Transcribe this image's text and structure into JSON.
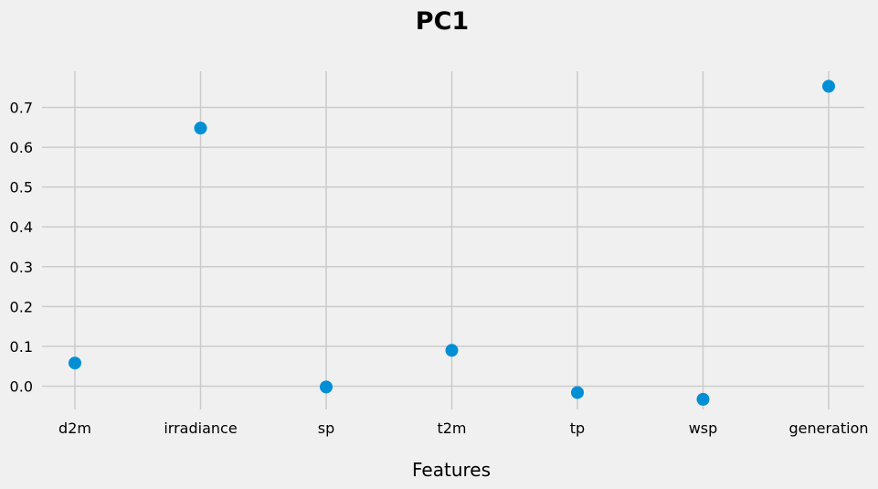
{
  "chart_data": {
    "type": "scatter",
    "title": "PC1",
    "xlabel": "Features",
    "ylabel": "",
    "categories": [
      "d2m",
      "irradiance",
      "sp",
      "t2m",
      "tp",
      "wsp",
      "generation"
    ],
    "values": [
      0.058,
      0.648,
      -0.002,
      0.09,
      -0.016,
      -0.033,
      0.753
    ],
    "yticks": [
      "0.0",
      "0.1",
      "0.2",
      "0.3",
      "0.4",
      "0.5",
      "0.6",
      "0.7"
    ],
    "ylim": [
      -0.065,
      0.79
    ],
    "grid": true,
    "marker_color": "#008fd5"
  }
}
